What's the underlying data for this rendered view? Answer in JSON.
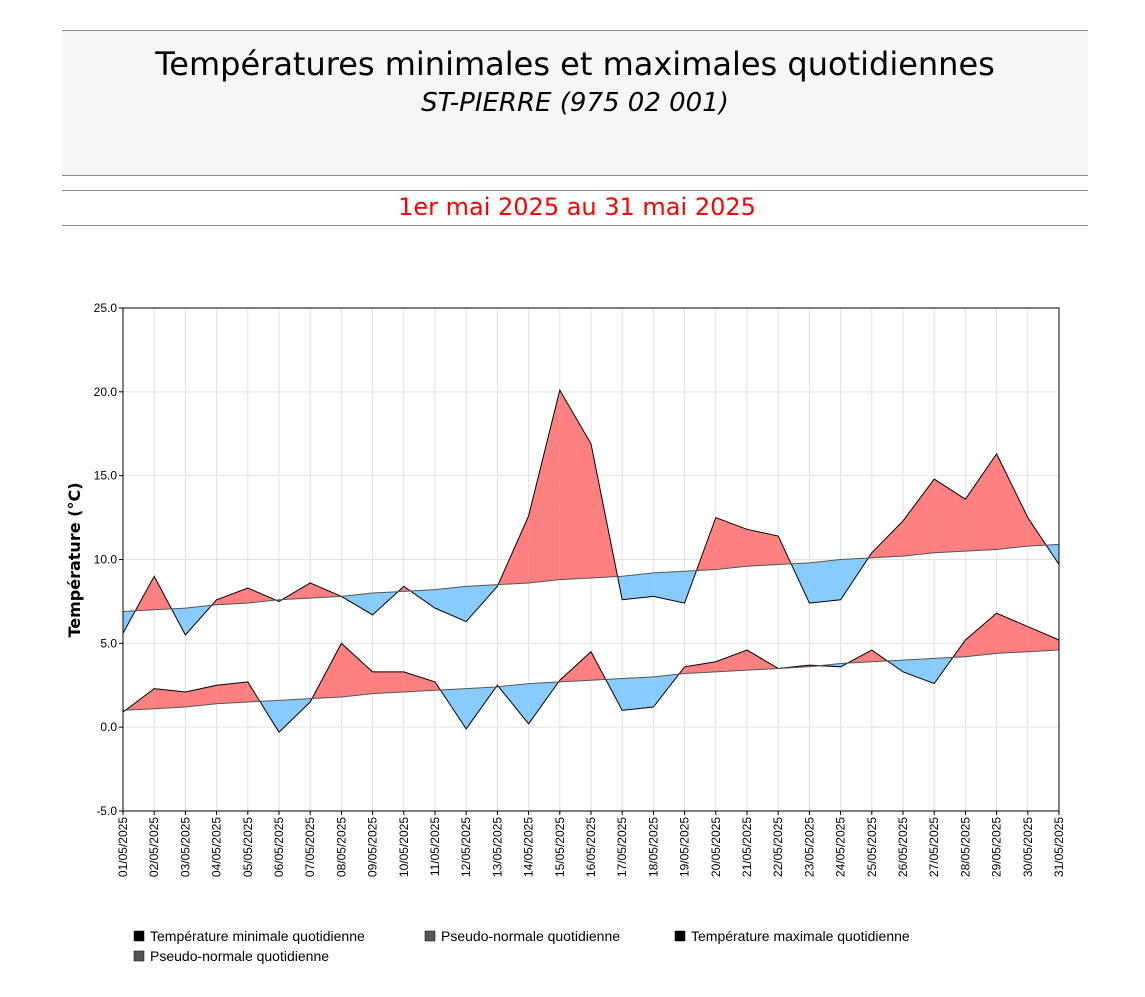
{
  "chart_data": {
    "type": "anomaly-line",
    "title": "Températures minimales et maximales quotidiennes",
    "subtitle": "ST-PIERRE (975 02 001)",
    "period": "1er mai 2025 au 31 mai 2025",
    "y_label": "Température (°C)",
    "categories": [
      "01/05/2025",
      "02/05/2025",
      "03/05/2025",
      "04/05/2025",
      "05/05/2025",
      "06/05/2025",
      "07/05/2025",
      "08/05/2025",
      "09/05/2025",
      "10/05/2025",
      "11/05/2025",
      "12/05/2025",
      "13/05/2025",
      "14/05/2025",
      "15/05/2025",
      "16/05/2025",
      "17/05/2025",
      "18/05/2025",
      "19/05/2025",
      "20/05/2025",
      "21/05/2025",
      "22/05/2025",
      "23/05/2025",
      "24/05/2025",
      "25/05/2025",
      "26/05/2025",
      "27/05/2025",
      "28/05/2025",
      "29/05/2025",
      "30/05/2025",
      "31/05/2025"
    ],
    "series": [
      {
        "name": "Température minimale quotidienne",
        "color": "#000000",
        "values": [
          0.9,
          2.3,
          2.1,
          2.5,
          2.7,
          -0.3,
          1.5,
          5.0,
          3.3,
          3.3,
          2.7,
          -0.1,
          2.5,
          0.2,
          2.8,
          4.5,
          1.0,
          1.2,
          3.6,
          3.9,
          4.6,
          3.5,
          3.7,
          3.6,
          4.6,
          3.3,
          2.6,
          5.2,
          6.8,
          6.0,
          5.2
        ]
      },
      {
        "name": "Pseudo-normale quotidienne",
        "color": "#555555",
        "values": [
          1.0,
          1.1,
          1.2,
          1.4,
          1.5,
          1.6,
          1.7,
          1.8,
          2.0,
          2.1,
          2.2,
          2.3,
          2.4,
          2.6,
          2.7,
          2.8,
          2.9,
          3.0,
          3.2,
          3.3,
          3.4,
          3.5,
          3.6,
          3.8,
          3.9,
          4.0,
          4.1,
          4.2,
          4.4,
          4.5,
          4.6
        ]
      },
      {
        "name": "Température maximale quotidienne",
        "color": "#000000",
        "values": [
          5.6,
          9.0,
          5.5,
          7.6,
          8.3,
          7.5,
          8.6,
          7.8,
          6.7,
          8.4,
          7.1,
          6.3,
          8.4,
          12.6,
          20.1,
          16.9,
          7.6,
          7.8,
          7.4,
          12.5,
          11.8,
          11.4,
          7.4,
          7.6,
          10.4,
          12.3,
          14.8,
          13.6,
          16.3,
          12.5,
          9.7
        ]
      },
      {
        "name": "Pseudo-normale quotidienne",
        "color": "#555555",
        "values": [
          6.9,
          7.0,
          7.1,
          7.3,
          7.4,
          7.6,
          7.7,
          7.8,
          8.0,
          8.1,
          8.2,
          8.4,
          8.5,
          8.6,
          8.8,
          8.9,
          9.0,
          9.2,
          9.3,
          9.4,
          9.6,
          9.7,
          9.8,
          10.0,
          10.1,
          10.2,
          10.4,
          10.5,
          10.6,
          10.8,
          10.9
        ]
      }
    ],
    "above_color": "#ff8080",
    "below_color": "#88ccff",
    "ylim": [
      -5,
      25
    ],
    "yticks": [
      {
        "value": -5,
        "label": "-5.0"
      },
      {
        "value": 0,
        "label": "0.0"
      },
      {
        "value": 5,
        "label": "5.0"
      },
      {
        "value": 10,
        "label": "10.0"
      },
      {
        "value": 15,
        "label": "15.0"
      },
      {
        "value": 20,
        "label": "20.0"
      },
      {
        "value": 25,
        "label": "25.0"
      }
    ],
    "grid": true
  }
}
